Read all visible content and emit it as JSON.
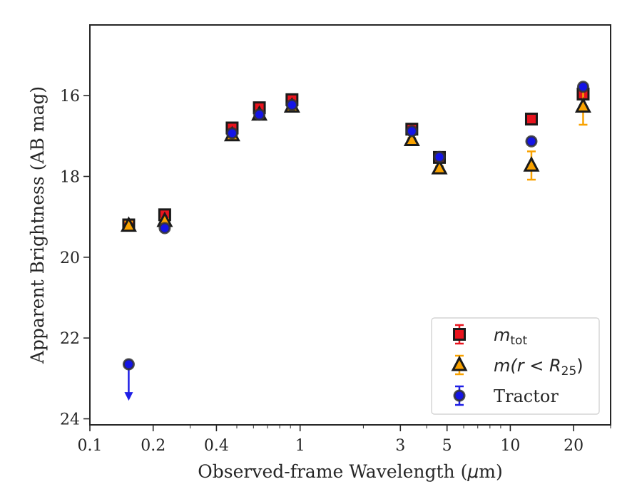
{
  "chart_data": {
    "type": "scatter",
    "xlabel_parts": [
      "Observed-frame Wavelength (",
      "μ",
      "m)"
    ],
    "ylabel": "Apparent Brightness (AB mag)",
    "xscale": "log",
    "xlim": [
      0.1,
      30
    ],
    "ylim": [
      24.15,
      14.25
    ],
    "y_inverted": true,
    "grid": false,
    "legend_position": "bottom-right",
    "x_ticks": [
      {
        "value": 0.1,
        "label": "0.1"
      },
      {
        "value": 0.2,
        "label": "0.2"
      },
      {
        "value": 0.4,
        "label": "0.4"
      },
      {
        "value": 1,
        "label": "1"
      },
      {
        "value": 3,
        "label": "3"
      },
      {
        "value": 5,
        "label": "5"
      },
      {
        "value": 10,
        "label": "10"
      },
      {
        "value": 20,
        "label": "20"
      }
    ],
    "y_ticks": [
      {
        "value": 16,
        "label": "16"
      },
      {
        "value": 18,
        "label": "18"
      },
      {
        "value": 20,
        "label": "20"
      },
      {
        "value": 22,
        "label": "22"
      },
      {
        "value": 24,
        "label": "24"
      }
    ],
    "series": [
      {
        "legend_main": "m",
        "legend_sub": "tot",
        "marker": "square",
        "color": "#e8141e",
        "errcolor": "#e8141e",
        "points": [
          {
            "x": 0.153,
            "y": 19.2,
            "err": 0.05
          },
          {
            "x": 0.227,
            "y": 18.95,
            "err": 0.05
          },
          {
            "x": 0.475,
            "y": 16.8,
            "err": 0.05
          },
          {
            "x": 0.64,
            "y": 16.3,
            "err": 0.05
          },
          {
            "x": 0.915,
            "y": 16.1,
            "err": 0.05
          },
          {
            "x": 3.4,
            "y": 16.83,
            "err": 0.05
          },
          {
            "x": 4.6,
            "y": 17.53,
            "err": 0.05
          },
          {
            "x": 12.6,
            "y": 16.58,
            "err": 0.05
          },
          {
            "x": 22.2,
            "y": 15.96,
            "err": 0.05
          }
        ]
      },
      {
        "legend_main": "m(r < R",
        "legend_sub": "25",
        "legend_end": ")",
        "marker": "triangle",
        "color": "#f9a200",
        "errcolor": "#f9a200",
        "points": [
          {
            "x": 0.153,
            "y": 19.22,
            "err": 0.1
          },
          {
            "x": 0.227,
            "y": 19.1,
            "err": 0.05
          },
          {
            "x": 0.475,
            "y": 16.98,
            "err": 0.05
          },
          {
            "x": 0.64,
            "y": 16.47,
            "err": 0.05
          },
          {
            "x": 0.915,
            "y": 16.27,
            "err": 0.05
          },
          {
            "x": 3.4,
            "y": 17.1,
            "err": 0.05
          },
          {
            "x": 4.6,
            "y": 17.8,
            "err": 0.05
          },
          {
            "x": 12.6,
            "y": 17.73,
            "err": 0.35
          },
          {
            "x": 22.2,
            "y": 16.27,
            "err": 0.45
          }
        ]
      },
      {
        "legend_main": "Tractor",
        "marker": "circle",
        "color": "#1414e6",
        "errcolor": "#1e1ee6",
        "points": [
          {
            "x": 0.153,
            "y": 22.65,
            "err": 0.02,
            "upper_limit": true,
            "arrow_to": 23.5
          },
          {
            "x": 0.227,
            "y": 19.28,
            "err": 0.03
          },
          {
            "x": 0.475,
            "y": 16.93,
            "err": 0.03
          },
          {
            "x": 0.64,
            "y": 16.47,
            "err": 0.03
          },
          {
            "x": 0.915,
            "y": 16.23,
            "err": 0.03
          },
          {
            "x": 3.4,
            "y": 16.88,
            "err": 0.03
          },
          {
            "x": 4.6,
            "y": 17.52,
            "err": 0.03
          },
          {
            "x": 12.6,
            "y": 17.13,
            "err": 0.03
          },
          {
            "x": 22.2,
            "y": 15.78,
            "err": 0.03
          }
        ]
      }
    ]
  }
}
